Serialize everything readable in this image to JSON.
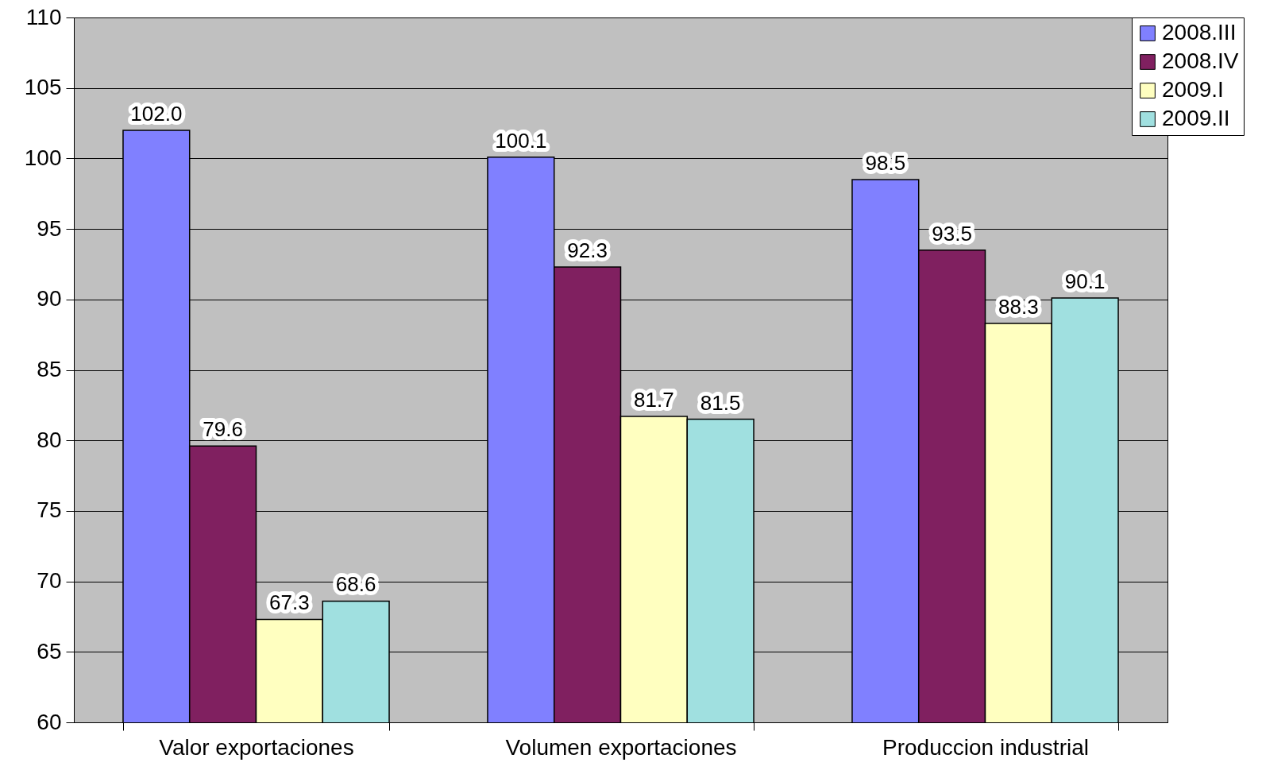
{
  "chart_data": {
    "type": "bar",
    "categories": [
      "Valor exportaciones",
      "Volumen exportaciones",
      "Produccion industrial"
    ],
    "series": [
      {
        "name": "2008.III",
        "color": "#8080ff",
        "values": [
          102.0,
          100.1,
          98.5
        ],
        "value_labels": [
          "102.0",
          "100.1",
          "98.5"
        ]
      },
      {
        "name": "2008.IV",
        "color": "#802060",
        "values": [
          79.6,
          92.3,
          93.5
        ],
        "value_labels": [
          "79.6",
          "92.3",
          "93.5"
        ]
      },
      {
        "name": "2009.I",
        "color": "#ffffc0",
        "values": [
          67.3,
          81.7,
          88.3
        ],
        "value_labels": [
          "67.3",
          "81.7",
          "88.3"
        ]
      },
      {
        "name": "2009.II",
        "color": "#a0e0e0",
        "values": [
          68.6,
          81.5,
          90.1
        ],
        "value_labels": [
          "68.6",
          "81.5",
          "90.1"
        ]
      }
    ],
    "ylim": [
      60,
      110
    ],
    "yticks": [
      60,
      65,
      70,
      75,
      80,
      85,
      90,
      95,
      100,
      105,
      110
    ],
    "grid": "y",
    "legend": "top right"
  }
}
